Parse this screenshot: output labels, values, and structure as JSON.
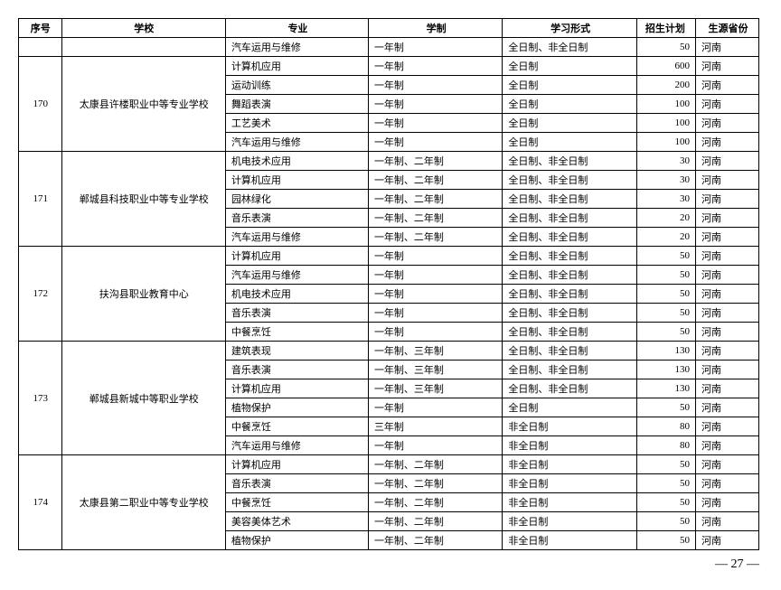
{
  "headers": {
    "seq": "序号",
    "school": "学校",
    "major": "专业",
    "duration": "学制",
    "form": "学习形式",
    "plan": "招生计划",
    "prov": "生源省份"
  },
  "groups": [
    {
      "seq": "",
      "school": "",
      "rows": [
        {
          "major": "汽车运用与维修",
          "duration": "一年制",
          "form": "全日制、非全日制",
          "plan": "50",
          "prov": "河南"
        }
      ]
    },
    {
      "seq": "170",
      "school": "太康县许楼职业中等专业学校",
      "rows": [
        {
          "major": "计算机应用",
          "duration": "一年制",
          "form": "全日制",
          "plan": "600",
          "prov": "河南"
        },
        {
          "major": "运动训练",
          "duration": "一年制",
          "form": "全日制",
          "plan": "200",
          "prov": "河南"
        },
        {
          "major": "舞蹈表演",
          "duration": "一年制",
          "form": "全日制",
          "plan": "100",
          "prov": "河南"
        },
        {
          "major": "工艺美术",
          "duration": "一年制",
          "form": "全日制",
          "plan": "100",
          "prov": "河南"
        },
        {
          "major": "汽车运用与维修",
          "duration": "一年制",
          "form": "全日制",
          "plan": "100",
          "prov": "河南"
        }
      ]
    },
    {
      "seq": "171",
      "school": "郸城县科技职业中等专业学校",
      "rows": [
        {
          "major": "机电技术应用",
          "duration": "一年制、二年制",
          "form": "全日制、非全日制",
          "plan": "30",
          "prov": "河南"
        },
        {
          "major": "计算机应用",
          "duration": "一年制、二年制",
          "form": "全日制、非全日制",
          "plan": "30",
          "prov": "河南"
        },
        {
          "major": "园林绿化",
          "duration": "一年制、二年制",
          "form": "全日制、非全日制",
          "plan": "30",
          "prov": "河南"
        },
        {
          "major": "音乐表演",
          "duration": "一年制、二年制",
          "form": "全日制、非全日制",
          "plan": "20",
          "prov": "河南"
        },
        {
          "major": "汽车运用与维修",
          "duration": "一年制、二年制",
          "form": "全日制、非全日制",
          "plan": "20",
          "prov": "河南"
        }
      ]
    },
    {
      "seq": "172",
      "school": "扶沟县职业教育中心",
      "rows": [
        {
          "major": "计算机应用",
          "duration": "一年制",
          "form": "全日制、非全日制",
          "plan": "50",
          "prov": "河南"
        },
        {
          "major": "汽车运用与维修",
          "duration": "一年制",
          "form": "全日制、非全日制",
          "plan": "50",
          "prov": "河南"
        },
        {
          "major": "机电技术应用",
          "duration": "一年制",
          "form": "全日制、非全日制",
          "plan": "50",
          "prov": "河南"
        },
        {
          "major": "音乐表演",
          "duration": "一年制",
          "form": "全日制、非全日制",
          "plan": "50",
          "prov": "河南"
        },
        {
          "major": "中餐烹饪",
          "duration": "一年制",
          "form": "全日制、非全日制",
          "plan": "50",
          "prov": "河南"
        }
      ]
    },
    {
      "seq": "173",
      "school": "郸城县新城中等职业学校",
      "rows": [
        {
          "major": "建筑表现",
          "duration": "一年制、三年制",
          "form": "全日制、非全日制",
          "plan": "130",
          "prov": "河南"
        },
        {
          "major": "音乐表演",
          "duration": "一年制、三年制",
          "form": "全日制、非全日制",
          "plan": "130",
          "prov": "河南"
        },
        {
          "major": "计算机应用",
          "duration": "一年制、三年制",
          "form": "全日制、非全日制",
          "plan": "130",
          "prov": "河南"
        },
        {
          "major": "植物保护",
          "duration": "一年制",
          "form": "全日制",
          "plan": "50",
          "prov": "河南"
        },
        {
          "major": "中餐烹饪",
          "duration": "三年制",
          "form": "非全日制",
          "plan": "80",
          "prov": "河南"
        },
        {
          "major": "汽车运用与维修",
          "duration": "一年制",
          "form": "非全日制",
          "plan": "80",
          "prov": "河南"
        }
      ]
    },
    {
      "seq": "174",
      "school": "太康县第二职业中等专业学校",
      "rows": [
        {
          "major": "计算机应用",
          "duration": "一年制、二年制",
          "form": "非全日制",
          "plan": "50",
          "prov": "河南"
        },
        {
          "major": "音乐表演",
          "duration": "一年制、二年制",
          "form": "非全日制",
          "plan": "50",
          "prov": "河南"
        },
        {
          "major": "中餐烹饪",
          "duration": "一年制、二年制",
          "form": "非全日制",
          "plan": "50",
          "prov": "河南"
        },
        {
          "major": "美容美体艺术",
          "duration": "一年制、二年制",
          "form": "非全日制",
          "plan": "50",
          "prov": "河南"
        },
        {
          "major": "植物保护",
          "duration": "一年制、二年制",
          "form": "非全日制",
          "plan": "50",
          "prov": "河南"
        }
      ]
    }
  ],
  "page_number": "— 27 —"
}
